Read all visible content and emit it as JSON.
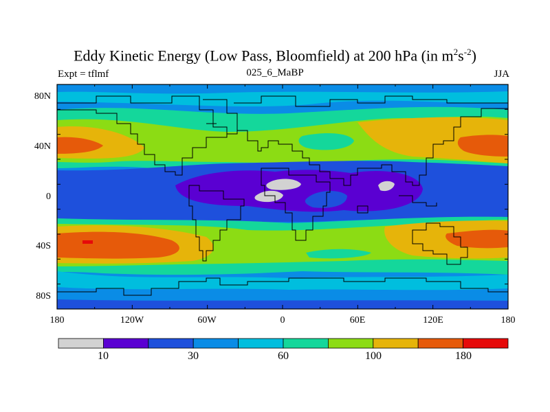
{
  "title_main": "Eddy Kinetic Energy (Low Pass, Bloomfield) at 200 hPa (in m",
  "title_sup1": "2",
  "title_mid": "s",
  "title_sup2": "-2",
  "title_end": ")",
  "expt": "Expt = tflmf",
  "run": "025_6_MaBP",
  "season": "JJA",
  "map": {
    "lat_ticks": [
      "80N",
      "40N",
      "0",
      "40S",
      "80S"
    ],
    "lon_ticks": [
      "180",
      "120W",
      "60W",
      "0",
      "60E",
      "120E",
      "180"
    ]
  },
  "colorbar": {
    "colors": [
      "#d2d2d2",
      "#5a00d2",
      "#1e50dc",
      "#0a8ce6",
      "#00bede",
      "#14d79b",
      "#8cdc14",
      "#e6b40a",
      "#e65a0a",
      "#e60a0a"
    ],
    "labels": [
      "10",
      "30",
      "60",
      "100",
      "180"
    ]
  }
}
